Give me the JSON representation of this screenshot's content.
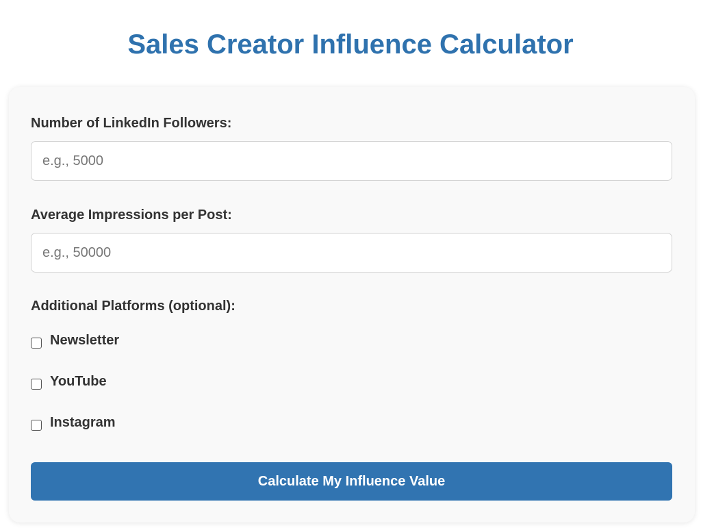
{
  "header": {
    "title": "Sales Creator Influence Calculator"
  },
  "form": {
    "followers": {
      "label": "Number of LinkedIn Followers:",
      "value": "",
      "placeholder": "e.g., 5000"
    },
    "impressions": {
      "label": "Average Impressions per Post:",
      "value": "",
      "placeholder": "e.g., 50000"
    },
    "platforms": {
      "label": "Additional Platforms (optional):",
      "options": [
        {
          "label": "Newsletter",
          "checked": false
        },
        {
          "label": "YouTube",
          "checked": false
        },
        {
          "label": "Instagram",
          "checked": false
        }
      ]
    },
    "submit_label": "Calculate My Influence Value"
  },
  "colors": {
    "accent": "#2f72ae",
    "button": "#3174b1",
    "card_background": "#f9f9f9",
    "text": "#333333"
  }
}
